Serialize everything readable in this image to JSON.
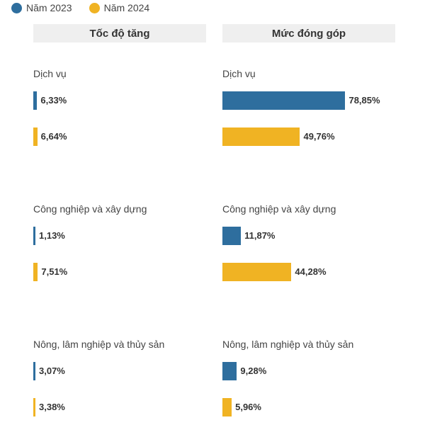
{
  "legend": [
    {
      "label": "Năm 2023",
      "color": "#2e6e9e"
    },
    {
      "label": "Năm 2024",
      "color": "#f0b323"
    }
  ],
  "chart_data": [
    {
      "type": "bar",
      "orientation": "horizontal",
      "title": "Tốc độ tăng",
      "categories": [
        "Dịch vụ",
        "Công nghiệp và xây dựng",
        "Nông, lâm nghiệp và thủy sản"
      ],
      "series": [
        {
          "name": "Năm 2023",
          "values": [
            6.33,
            1.13,
            3.07
          ],
          "labels": [
            "6,33%",
            "1,13%",
            "3,07%"
          ]
        },
        {
          "name": "Năm 2024",
          "values": [
            6.64,
            7.51,
            3.38
          ],
          "labels": [
            "6,64%",
            "7,51%",
            "3,38%"
          ]
        }
      ]
    },
    {
      "type": "bar",
      "orientation": "horizontal",
      "title": "Mức đóng góp",
      "categories": [
        "Dịch vụ",
        "Công nghiệp và xây dựng",
        "Nông, lâm nghiệp và thủy sản"
      ],
      "series": [
        {
          "name": "Năm 2023",
          "values": [
            78.85,
            11.87,
            9.28
          ],
          "labels": [
            "78,85%",
            "11,87%",
            "9,28%"
          ]
        },
        {
          "name": "Năm 2024",
          "values": [
            49.76,
            44.28,
            5.96
          ],
          "labels": [
            "49,76%",
            "44,28%",
            "5,96%"
          ]
        }
      ]
    }
  ]
}
